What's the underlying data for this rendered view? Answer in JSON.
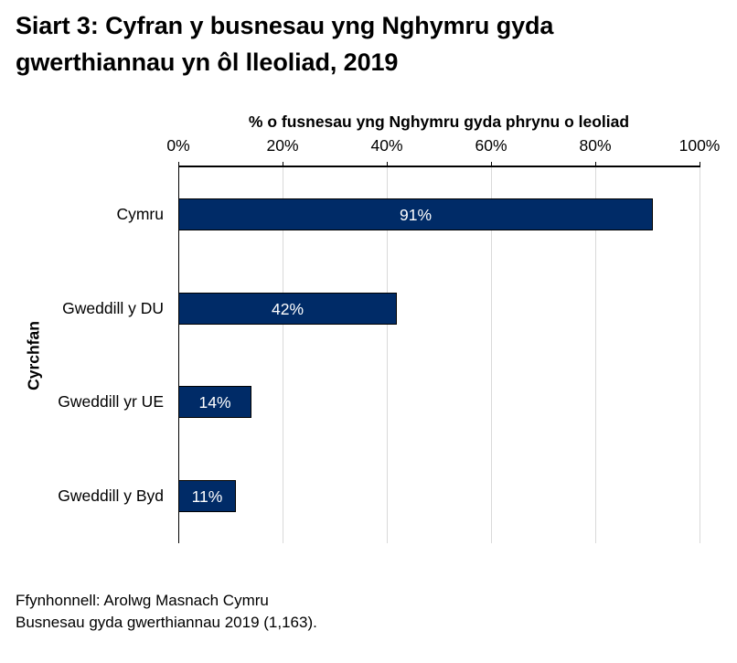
{
  "title_line1": "Siart 3: Cyfran y busnesau yng Nghymru gyda",
  "title_line2": "gwerthiannau yn ôl lleoliad, 2019",
  "x_axis": {
    "title": "% o fusnesau yng Nghymru gyda phrynu o leoliad",
    "ticks": [
      "0%",
      "20%",
      "40%",
      "60%",
      "80%",
      "100%"
    ]
  },
  "y_axis": {
    "title": "Cyrchfan"
  },
  "bars": [
    {
      "label": "Cymru",
      "value": 91,
      "value_label": "91%"
    },
    {
      "label": "Gweddill y DU",
      "value": 42,
      "value_label": "42%"
    },
    {
      "label": "Gweddill yr UE",
      "value": 14,
      "value_label": "14%"
    },
    {
      "label": "Gweddill y Byd",
      "value": 11,
      "value_label": "11%"
    }
  ],
  "footnote": {
    "source": "Ffynhonnell: Arolwg Masnach Cymru",
    "sample": "Busnesau gyda gwerthiannau 2019 (1,163)."
  },
  "colors": {
    "bar": "#002b67",
    "gridline": "#d9d9d9",
    "bar_label": "#ffffff"
  },
  "chart_data": {
    "type": "bar",
    "orientation": "horizontal",
    "title": "Siart 3: Cyfran y busnesau yng Nghymru gyda gwerthiannau yn ôl lleoliad, 2019",
    "categories": [
      "Cymru",
      "Gweddill y DU",
      "Gweddill yr UE",
      "Gweddill y Byd"
    ],
    "values": [
      91,
      42,
      14,
      11
    ],
    "data_labels": [
      "91%",
      "42%",
      "14%",
      "11%"
    ],
    "xlabel": "% o fusnesau yng Nghymru gyda phrynu o leoliad",
    "ylabel": "Cyrchfan",
    "xlim": [
      0,
      100
    ],
    "x_ticks": [
      "0%",
      "20%",
      "40%",
      "60%",
      "80%",
      "100%"
    ],
    "x_axis_position": "top",
    "grid": "vertical",
    "legend": null,
    "notes": [
      "Ffynhonnell: Arolwg Masnach Cymru",
      "Busnesau gyda gwerthiannau 2019 (1,163)."
    ]
  }
}
